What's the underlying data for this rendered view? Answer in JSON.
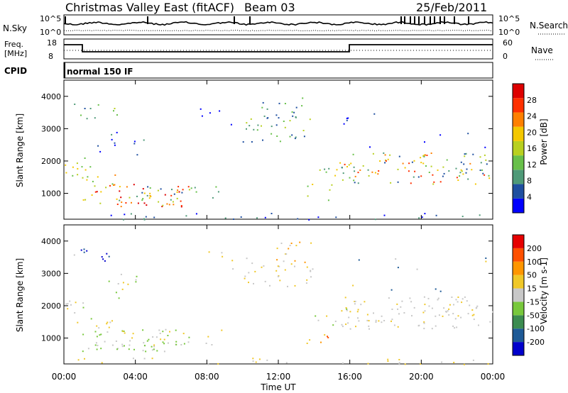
{
  "header": {
    "site": "Christmas Valley East (fitACF)",
    "beam": "Beam 03",
    "date": "25/Feb/2011"
  },
  "nsky": {
    "label": "N.Sky",
    "ticks": [
      "10^5",
      "10^0"
    ],
    "right_label": "N.Search",
    "right_ticks": [
      "10^5",
      "10^0"
    ]
  },
  "freq": {
    "label_lines": [
      "Freq.",
      "[MHz]"
    ],
    "ticks": [
      "18",
      "8"
    ],
    "right_label": "Nave",
    "right_ticks": [
      "60",
      "0"
    ]
  },
  "cpid": {
    "label": "CPID",
    "value": "normal 150 IF"
  },
  "chart_data": [
    {
      "type": "heatmap",
      "name": "Power",
      "ylabel": "Slant Range [km]",
      "ylim": [
        200,
        4500
      ],
      "yticks": [
        "1000",
        "2000",
        "3000",
        "4000"
      ],
      "colorbar": {
        "label": "Power [dB]",
        "ticks": [
          "28",
          "24",
          "20",
          "16",
          "12",
          "8",
          "4"
        ],
        "colors": [
          "#0000ff",
          "#1f4fa0",
          "#4f9a78",
          "#68c04a",
          "#b8d020",
          "#f4c800",
          "#ff8000",
          "#ff3000",
          "#dd0000"
        ]
      }
    },
    {
      "type": "heatmap",
      "name": "Velocity",
      "ylabel": "Slant Range [km]",
      "ylim": [
        200,
        4500
      ],
      "yticks": [
        "1000",
        "2000",
        "3000",
        "4000"
      ],
      "xticks": [
        "00:00",
        "04:00",
        "08:00",
        "12:00",
        "16:00",
        "20:00",
        "00:00"
      ],
      "xlabel": "Time UT",
      "colorbar": {
        "label": "Velocity [m s-1]",
        "ticks": [
          "200",
          "100",
          "50",
          "15",
          "-15",
          "-50",
          "-100",
          "-200"
        ],
        "colors": [
          "#0000cc",
          "#1e5a96",
          "#3c8c50",
          "#78c83c",
          "#c8c8c8",
          "#f0c828",
          "#ff9600",
          "#ff5000",
          "#e60000"
        ]
      }
    }
  ]
}
